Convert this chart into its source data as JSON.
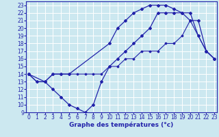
{
  "line1": {
    "x": [
      0,
      1,
      2,
      3,
      4,
      5,
      10,
      11,
      12,
      13,
      14,
      15,
      16,
      17,
      18,
      19,
      20,
      21,
      22,
      23
    ],
    "y": [
      14,
      13,
      13,
      14,
      14,
      14,
      18,
      20,
      21,
      22,
      22.5,
      23,
      23,
      23,
      22.5,
      22,
      22,
      19,
      17,
      16
    ],
    "color": "#2222aa",
    "marker": "D",
    "markersize": 2,
    "linewidth": 0.9
  },
  "line2": {
    "x": [
      0,
      1,
      2,
      3,
      4,
      5,
      6,
      7,
      8,
      9,
      10,
      11,
      12,
      13,
      14,
      15,
      16,
      17,
      18,
      19,
      20,
      21,
      22,
      23
    ],
    "y": [
      14,
      13,
      13,
      14,
      14,
      14,
      14,
      14,
      14,
      14,
      15,
      15,
      16,
      16,
      17,
      17,
      17,
      18,
      18,
      19,
      21,
      19,
      17,
      16
    ],
    "color": "#2222aa",
    "marker": "D",
    "markersize": 1.5,
    "linewidth": 0.8
  },
  "line3": {
    "x": [
      0,
      2,
      3,
      4,
      5,
      6,
      7,
      8,
      9,
      10,
      11,
      12,
      13,
      14,
      15,
      16,
      17,
      18,
      19,
      20,
      21,
      22,
      23
    ],
    "y": [
      14,
      13,
      12,
      11,
      10,
      9.5,
      9,
      10,
      13,
      15,
      16,
      17,
      18,
      19,
      20,
      22,
      22,
      22,
      22,
      21,
      21,
      17,
      16
    ],
    "color": "#2222aa",
    "marker": "D",
    "markersize": 2,
    "linewidth": 0.9
  },
  "xlim": [
    -0.3,
    23.3
  ],
  "ylim": [
    9,
    23.5
  ],
  "yticks": [
    9,
    10,
    11,
    12,
    13,
    14,
    15,
    16,
    17,
    18,
    19,
    20,
    21,
    22,
    23
  ],
  "xticks": [
    0,
    1,
    2,
    3,
    4,
    5,
    6,
    7,
    8,
    9,
    10,
    11,
    12,
    13,
    14,
    15,
    16,
    17,
    18,
    19,
    20,
    21,
    22,
    23
  ],
  "xlabel": "Graphe des températures (°c)",
  "bg_color": "#cce8f0",
  "grid_color": "#ffffff",
  "axis_color": "#2222aa",
  "label_fontsize": 5.5,
  "xlabel_fontsize": 6.5
}
